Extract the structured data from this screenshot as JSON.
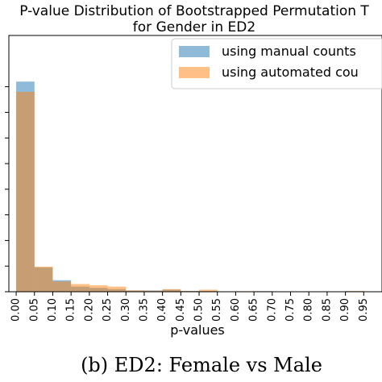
{
  "chart_data": {
    "type": "bar",
    "title_line1": "P-value Distribution of Bootstrapped Permutation T",
    "title_line2": "for Gender in ED2",
    "xlabel": "p-values",
    "ylabel": "",
    "xlim": [
      -0.02,
      1.0
    ],
    "ylim": [
      0,
      100
    ],
    "bin_edges": [
      0.0,
      0.05,
      0.1,
      0.15,
      0.2,
      0.25,
      0.3,
      0.35,
      0.4,
      0.45,
      0.5,
      0.55,
      0.6,
      0.65,
      0.7,
      0.75,
      0.8,
      0.85,
      0.9,
      0.95,
      1.0
    ],
    "x_tick_labels": [
      "0.00",
      "0.05",
      "0.10",
      "0.15",
      "0.20",
      "0.25",
      "0.30",
      "0.35",
      "0.40",
      "0.45",
      "0.50",
      "0.55",
      "0.60",
      "0.65",
      "0.70",
      "0.75",
      "0.80",
      "0.85",
      "0.90",
      "0.95"
    ],
    "series": [
      {
        "name": "using manual counts",
        "color": "#1f77b4",
        "alpha": 0.5,
        "values": [
          82,
          9.5,
          4.5,
          2,
          1.5,
          1,
          0.5,
          0.5,
          0.8,
          0.3,
          0.3,
          0,
          0,
          0.2,
          0,
          0,
          0,
          0,
          0.2,
          0
        ]
      },
      {
        "name": "using automated cou",
        "color": "#ff7f0e",
        "alpha": 0.5,
        "values": [
          78,
          9.8,
          4,
          3,
          2.5,
          2,
          0.5,
          0.4,
          1,
          0.3,
          0.8,
          0,
          0.2,
          0.2,
          0,
          0,
          0,
          0,
          0.3,
          0
        ]
      }
    ],
    "legend_position": "top-right",
    "grid": false
  },
  "caption": "(b) ED2: Female vs Male"
}
